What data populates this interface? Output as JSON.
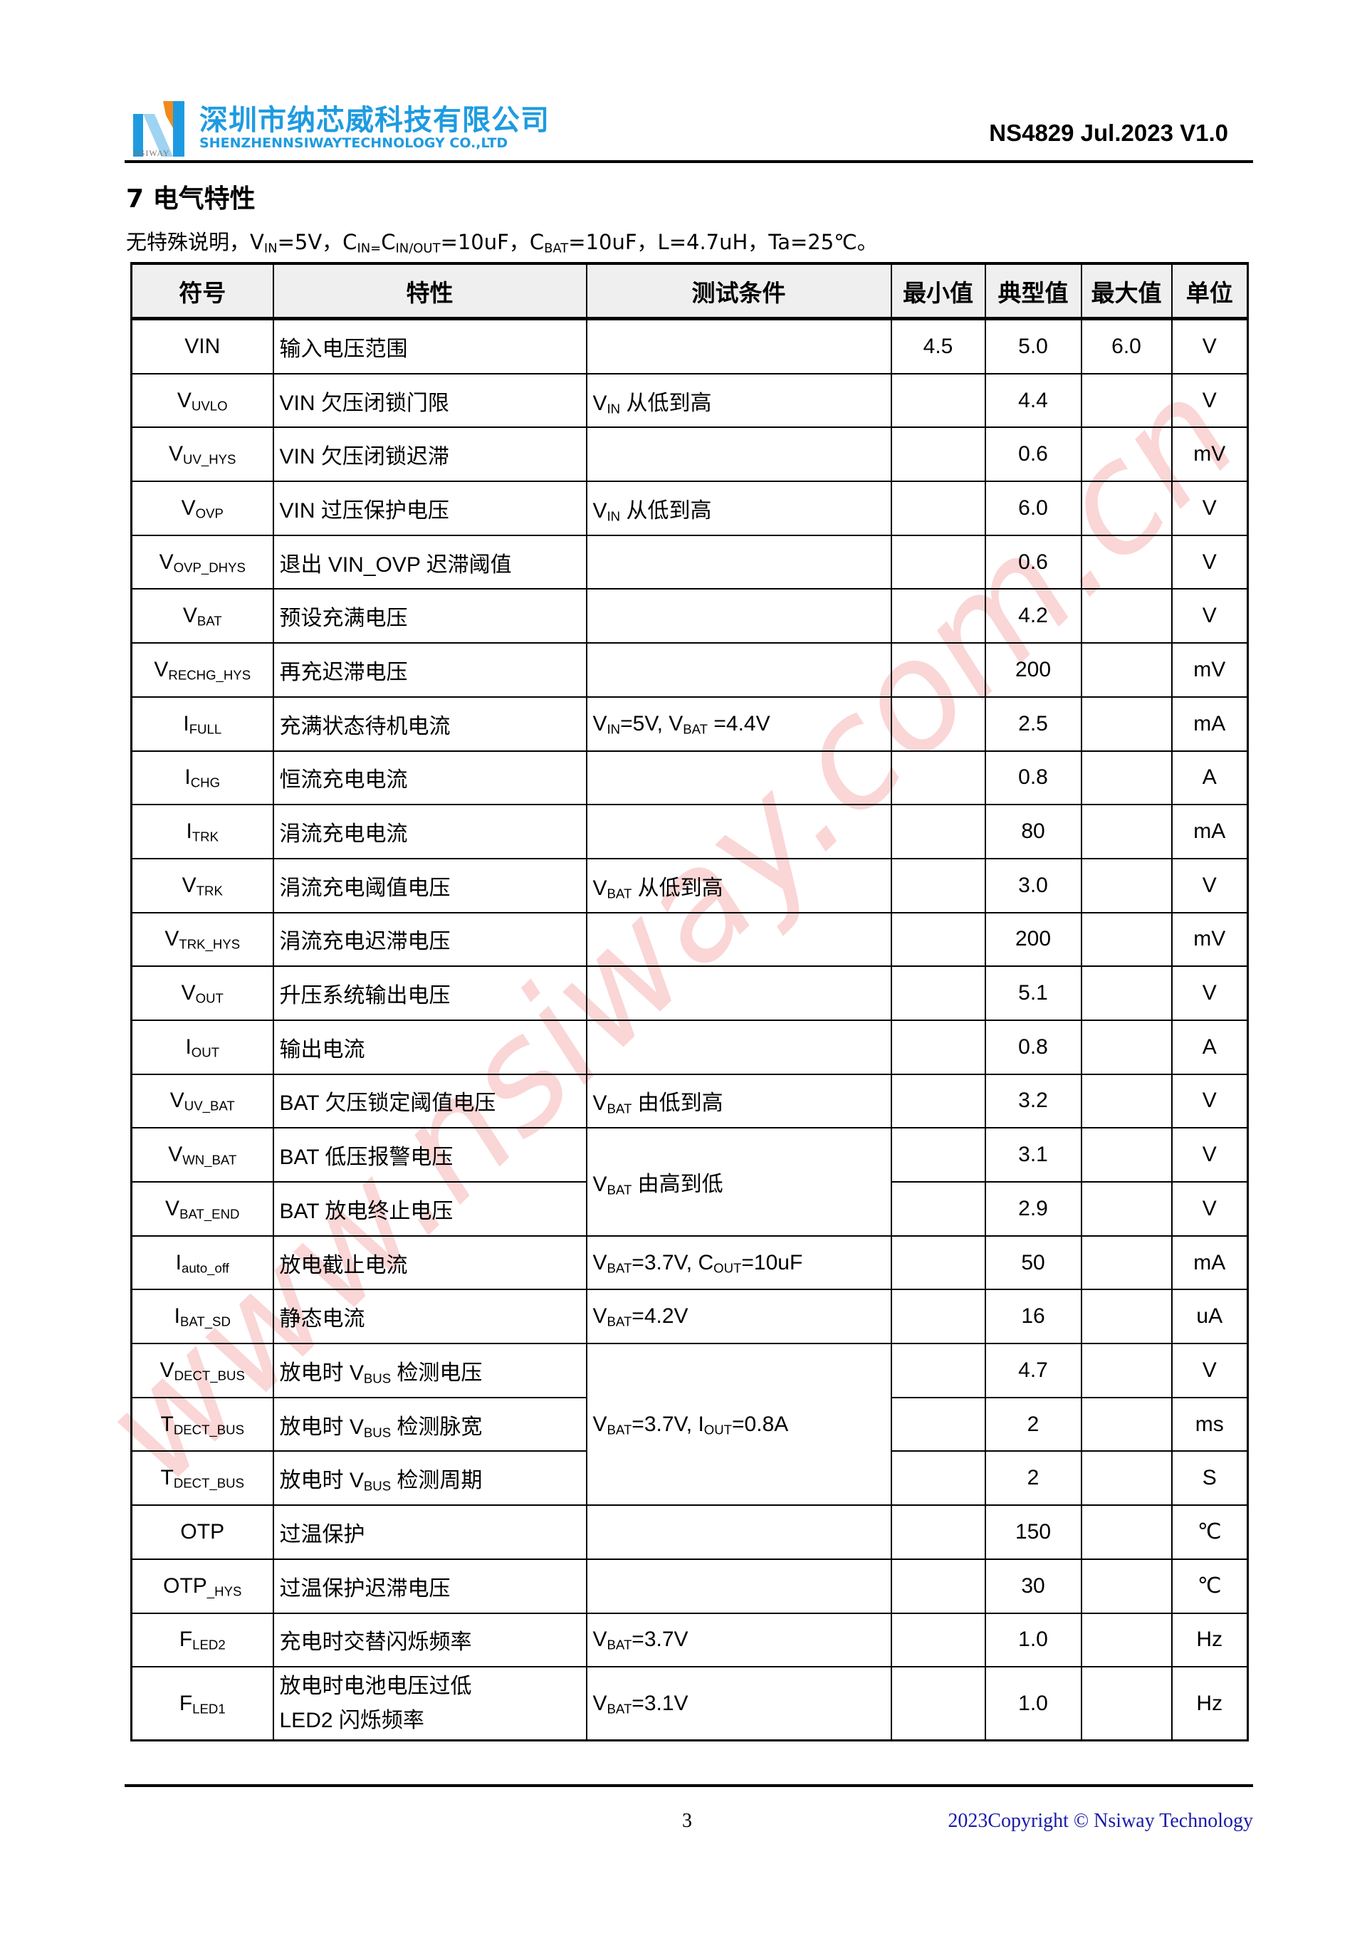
{
  "header": {
    "company_cn": "深圳市纳芯威科技有限公司",
    "company_en": "SHENZHENNSIWAYTECHNOLOGY CO.,LTD",
    "logo_word": "NSIWAY",
    "doc_id": "NS4829 Jul.2023 V1.0",
    "logo_colors": {
      "blue": "#1e9be0",
      "orange": "#f08a1c"
    }
  },
  "section_title": "7 电气特性",
  "conditions": [
    "无特殊说明，V",
    {
      "sub": "IN"
    },
    "=5V，C",
    {
      "sub": "IN="
    },
    "C",
    {
      "sub": "IN/OUT"
    },
    "=10uF，C",
    {
      "sub": "BAT"
    },
    "=10uF，L=4.7uH，Ta=25℃。"
  ],
  "table": {
    "columns": [
      "符号",
      "特性",
      "测试条件",
      "最小值",
      "典型值",
      "最大值",
      "单位"
    ],
    "rows": [
      {
        "symbol": [
          "VIN"
        ],
        "property": [
          "输入电压范围"
        ],
        "condition": [],
        "min": "4.5",
        "typ": "5.0",
        "max": "6.0",
        "unit": "V"
      },
      {
        "symbol": [
          "V",
          {
            "sub": "UVLO"
          }
        ],
        "property": [
          "VIN 欠压闭锁门限"
        ],
        "condition": [
          "V",
          {
            "sub": "IN"
          },
          " 从低到高"
        ],
        "min": "",
        "typ": "4.4",
        "max": "",
        "unit": "V"
      },
      {
        "symbol": [
          "V",
          {
            "sub": "UV_HYS"
          }
        ],
        "property": [
          "VIN 欠压闭锁迟滞"
        ],
        "condition": [],
        "min": "",
        "typ": "0.6",
        "max": "",
        "unit": "mV"
      },
      {
        "symbol": [
          "V",
          {
            "sub": "OVP"
          }
        ],
        "property": [
          "VIN 过压保护电压"
        ],
        "condition": [
          "V",
          {
            "sub": "IN"
          },
          " 从低到高"
        ],
        "min": "",
        "typ": "6.0",
        "max": "",
        "unit": "V"
      },
      {
        "symbol": [
          "V",
          {
            "sub": "OVP_DHYS"
          }
        ],
        "property": [
          "退出 VIN_OVP 迟滞阈值"
        ],
        "condition": [],
        "min": "",
        "typ": "0.6",
        "max": "",
        "unit": "V"
      },
      {
        "symbol": [
          "V",
          {
            "sub": "BAT"
          }
        ],
        "property": [
          "预设充满电压"
        ],
        "condition": [],
        "min": "",
        "typ": "4.2",
        "max": "",
        "unit": "V"
      },
      {
        "symbol": [
          "V",
          {
            "sub": "RECHG_HYS"
          }
        ],
        "property": [
          "再充迟滞电压"
        ],
        "condition": [],
        "min": "",
        "typ": "200",
        "max": "",
        "unit": "mV"
      },
      {
        "symbol": [
          "I",
          {
            "sub": "FULL"
          }
        ],
        "property": [
          "充满状态待机电流"
        ],
        "condition": [
          "V",
          {
            "sub": "IN"
          },
          "=5V, V",
          {
            "sub": "BAT"
          },
          " =4.4V"
        ],
        "min": "",
        "typ": "2.5",
        "max": "",
        "unit": "mA"
      },
      {
        "symbol": [
          "I",
          {
            "sub": "CHG"
          }
        ],
        "property": [
          "恒流充电电流"
        ],
        "condition": [],
        "min": "",
        "typ": "0.8",
        "max": "",
        "unit": "A"
      },
      {
        "symbol": [
          "I",
          {
            "sub": "TRK"
          }
        ],
        "property": [
          "涓流充电电流"
        ],
        "condition": [],
        "min": "",
        "typ": "80",
        "max": "",
        "unit": "mA"
      },
      {
        "symbol": [
          "V",
          {
            "sub": "TRK"
          }
        ],
        "property": [
          "涓流充电阈值电压"
        ],
        "condition": [
          "V",
          {
            "sub": "BAT"
          },
          " 从低到高"
        ],
        "min": "",
        "typ": "3.0",
        "max": "",
        "unit": "V"
      },
      {
        "symbol": [
          "V",
          {
            "sub": "TRK_HYS"
          }
        ],
        "property": [
          "涓流充电迟滞电压"
        ],
        "condition": [],
        "min": "",
        "typ": "200",
        "max": "",
        "unit": "mV"
      },
      {
        "symbol": [
          "V",
          {
            "sub": "OUT"
          }
        ],
        "property": [
          "升压系统输出电压"
        ],
        "condition": [],
        "min": "",
        "typ": "5.1",
        "max": "",
        "unit": "V"
      },
      {
        "symbol": [
          "I",
          {
            "sub": "OUT"
          }
        ],
        "property": [
          "输出电流"
        ],
        "condition": [],
        "min": "",
        "typ": "0.8",
        "max": "",
        "unit": "A"
      },
      {
        "symbol": [
          "V",
          {
            "sub": "UV_BAT"
          }
        ],
        "property": [
          "BAT 欠压锁定阈值电压"
        ],
        "condition": [
          "V",
          {
            "sub": "BAT"
          },
          " 由低到高"
        ],
        "min": "",
        "typ": "3.2",
        "max": "",
        "unit": "V"
      },
      {
        "symbol": [
          "V",
          {
            "sub": "WN_BAT"
          }
        ],
        "property": [
          "BAT 低压报警电压"
        ],
        "condition": [
          "V",
          {
            "sub": "BAT"
          },
          " 由高到低"
        ],
        "min": "",
        "typ": "3.1",
        "max": "",
        "unit": "V"
      },
      {
        "symbol": [
          "V",
          {
            "sub": "BAT_END"
          }
        ],
        "property": [
          "BAT 放电终止电压"
        ],
        "condition": null,
        "min": "",
        "typ": "2.9",
        "max": "",
        "unit": "V"
      },
      {
        "symbol": [
          "I",
          {
            "sub": "auto_off"
          }
        ],
        "property": [
          "放电截止电流"
        ],
        "condition": [
          "V",
          {
            "sub": "BAT"
          },
          "=3.7V, C",
          {
            "sub": "OUT"
          },
          "=10uF"
        ],
        "min": "",
        "typ": "50",
        "max": "",
        "unit": "mA"
      },
      {
        "symbol": [
          "I",
          {
            "sub": "BAT_SD"
          }
        ],
        "property": [
          "静态电流"
        ],
        "condition": [
          "V",
          {
            "sub": "BAT"
          },
          "=4.2V"
        ],
        "min": "",
        "typ": "16",
        "max": "",
        "unit": "uA"
      },
      {
        "symbol": [
          "V",
          {
            "sub": "DECT_BUS"
          }
        ],
        "property": [
          "放电时 V",
          {
            "sub": "BUS"
          },
          " 检测电压"
        ],
        "condition": [
          "V",
          {
            "sub": "BAT"
          },
          "=3.7V, I",
          {
            "sub": "OUT"
          },
          "=0.8A"
        ],
        "min": "",
        "typ": "4.7",
        "max": "",
        "unit": "V"
      },
      {
        "symbol": [
          "T",
          {
            "sub": "DECT_BUS"
          }
        ],
        "property": [
          "放电时 V",
          {
            "sub": "BUS"
          },
          " 检测脉宽"
        ],
        "condition": null,
        "min": "",
        "typ": "2",
        "max": "",
        "unit": "ms"
      },
      {
        "symbol": [
          "T",
          {
            "sub": "DECT_BUS"
          }
        ],
        "property": [
          "放电时 V",
          {
            "sub": "BUS"
          },
          " 检测周期"
        ],
        "condition": null,
        "min": "",
        "typ": "2",
        "max": "",
        "unit": "S"
      },
      {
        "symbol": [
          "OTP"
        ],
        "property": [
          "过温保护"
        ],
        "condition": [],
        "min": "",
        "typ": "150",
        "max": "",
        "unit": "℃"
      },
      {
        "symbol": [
          "OTP",
          {
            "sub": "_HYS"
          }
        ],
        "property": [
          "过温保护迟滞电压"
        ],
        "condition": [],
        "min": "",
        "typ": "30",
        "max": "",
        "unit": "℃"
      },
      {
        "symbol": [
          "F",
          {
            "sub": "LED2"
          }
        ],
        "property": [
          "充电时交替闪烁频率"
        ],
        "condition": [
          "V",
          {
            "sub": "BAT"
          },
          "=3.7V"
        ],
        "min": "",
        "typ": "1.0",
        "max": "",
        "unit": "Hz"
      },
      {
        "symbol": [
          "F",
          {
            "sub": "LED1"
          }
        ],
        "property": [
          "放电时电池电压过低",
          {
            "br": true
          },
          "LED2 闪烁频率"
        ],
        "condition": [
          "V",
          {
            "sub": "BAT"
          },
          "=3.1V"
        ],
        "min": "",
        "typ": "1.0",
        "max": "",
        "unit": "Hz"
      }
    ]
  },
  "watermark": "www.nsiway.com.cn",
  "watermark_color": "#f5b5b5",
  "footer": {
    "page_number": "3",
    "copyright": "2023Copyright © Nsiway Technology",
    "copyright_color": "#1a1aaa"
  }
}
